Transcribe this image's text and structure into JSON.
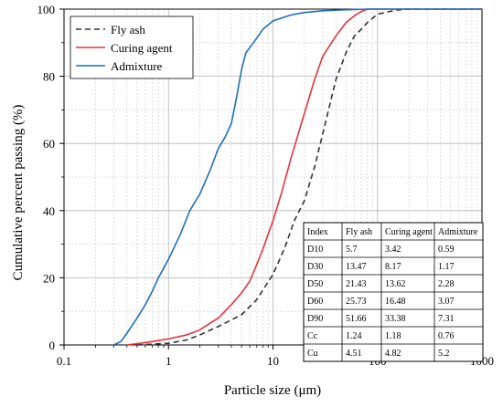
{
  "chart_data": {
    "type": "line",
    "xlabel": "Particle size (μm)",
    "ylabel": "Cumulative percent passing (%)",
    "xscale": "log",
    "xlim": [
      0.1,
      1000
    ],
    "ylim": [
      0,
      100
    ],
    "xticks": [
      0.1,
      1,
      10,
      100,
      1000
    ],
    "xtick_labels": [
      "0.1",
      "1",
      "10",
      "100",
      "1000"
    ],
    "yticks": [
      0,
      20,
      40,
      60,
      80,
      100
    ],
    "ytick_labels": [
      "0",
      "20",
      "40",
      "60",
      "80",
      "100"
    ],
    "grid": true,
    "legend_position": "top-left",
    "series": [
      {
        "name": "Fly ash",
        "color": "#333333",
        "line_style": "dashed",
        "points": [
          [
            0.5,
            0
          ],
          [
            1,
            0.5
          ],
          [
            1.5,
            1.5
          ],
          [
            2,
            3
          ],
          [
            3,
            5.5
          ],
          [
            5,
            9
          ],
          [
            7,
            13.5
          ],
          [
            10,
            21
          ],
          [
            13,
            29
          ],
          [
            16,
            37
          ],
          [
            20,
            43
          ],
          [
            25,
            53
          ],
          [
            30,
            63
          ],
          [
            40,
            79
          ],
          [
            50,
            87
          ],
          [
            60,
            92
          ],
          [
            70,
            94
          ],
          [
            80,
            96
          ],
          [
            100,
            98.5
          ],
          [
            150,
            99.7
          ],
          [
            200,
            100
          ],
          [
            1000,
            100
          ]
        ]
      },
      {
        "name": "Curing agent",
        "color": "#e8313a",
        "line_style": "solid",
        "points": [
          [
            0.4,
            0
          ],
          [
            0.6,
            0.7
          ],
          [
            0.8,
            1.3
          ],
          [
            1,
            1.8
          ],
          [
            1.5,
            3
          ],
          [
            2,
            4.5
          ],
          [
            2.5,
            6.5
          ],
          [
            3,
            8
          ],
          [
            4,
            12
          ],
          [
            5,
            15.5
          ],
          [
            6,
            19
          ],
          [
            7,
            24
          ],
          [
            8,
            28.5
          ],
          [
            9,
            33
          ],
          [
            10,
            37
          ],
          [
            12,
            45
          ],
          [
            15,
            56
          ],
          [
            20,
            69
          ],
          [
            25,
            79
          ],
          [
            30,
            86
          ],
          [
            40,
            92
          ],
          [
            50,
            96
          ],
          [
            60,
            98
          ],
          [
            70,
            99.3
          ],
          [
            80,
            100
          ],
          [
            1000,
            100
          ]
        ]
      },
      {
        "name": "Admixture",
        "color": "#1f6dbf",
        "line_style": "solid",
        "points": [
          [
            0.3,
            0
          ],
          [
            0.35,
            1
          ],
          [
            0.4,
            3.5
          ],
          [
            0.5,
            8
          ],
          [
            0.6,
            12
          ],
          [
            0.7,
            16
          ],
          [
            0.8,
            20
          ],
          [
            1,
            25.5
          ],
          [
            1.3,
            33
          ],
          [
            1.6,
            40
          ],
          [
            2,
            45
          ],
          [
            2.5,
            52
          ],
          [
            3,
            58.5
          ],
          [
            3.5,
            62
          ],
          [
            4,
            66
          ],
          [
            4.5,
            74
          ],
          [
            5,
            82
          ],
          [
            5.5,
            87
          ],
          [
            6.5,
            90
          ],
          [
            8,
            94
          ],
          [
            10,
            96.5
          ],
          [
            15,
            98.3
          ],
          [
            20,
            99
          ],
          [
            30,
            99.5
          ],
          [
            50,
            99.8
          ],
          [
            80,
            100
          ],
          [
            1000,
            100
          ]
        ]
      }
    ]
  },
  "table": {
    "headers": [
      "Index",
      "Fly ash",
      "Curing agent",
      "Admixture"
    ],
    "rows": [
      [
        "D10",
        "5.7",
        "3.42",
        "0.59"
      ],
      [
        "D30",
        "13.47",
        "8.17",
        "1.17"
      ],
      [
        "D50",
        "21.43",
        "13.62",
        "2.28"
      ],
      [
        "D60",
        "25.73",
        "16.48",
        "3.07"
      ],
      [
        "D90",
        "51.66",
        "33.38",
        "7.31"
      ],
      [
        "Cc",
        "1.24",
        "1.18",
        "0.76"
      ],
      [
        "Cu",
        "4.51",
        "4.82",
        "5.2"
      ]
    ]
  }
}
